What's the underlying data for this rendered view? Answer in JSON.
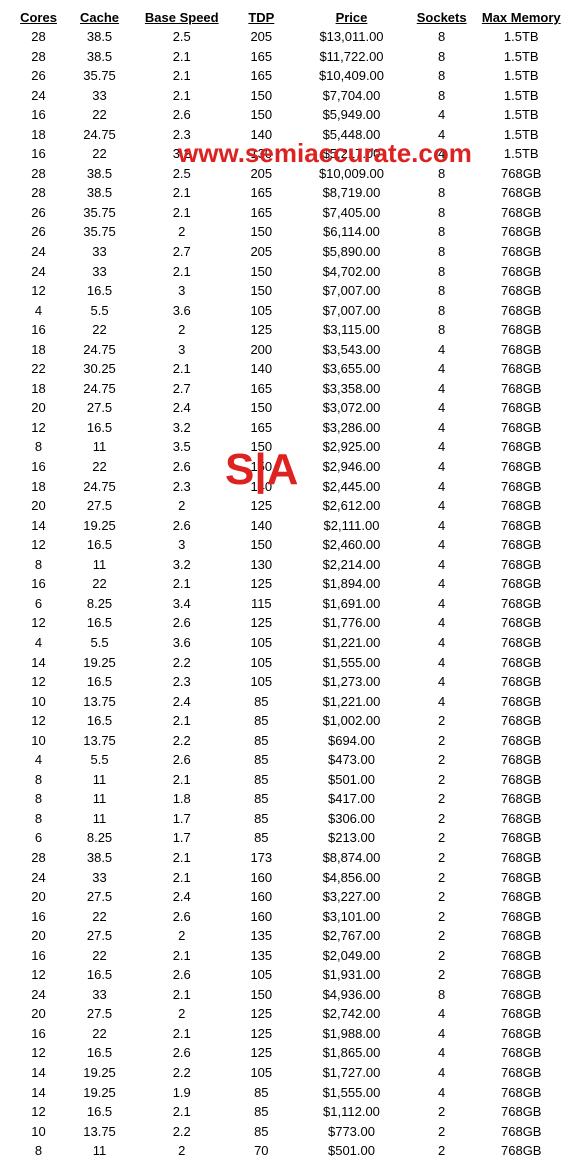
{
  "headers": {
    "cores": "Cores",
    "cache": "Cache",
    "speed": "Base Speed",
    "tdp": "TDP",
    "price": "Price",
    "sockets": "Sockets",
    "mem": "Max Memory"
  },
  "watermark1": "www.semiaccurate.com",
  "watermark2": "S|A",
  "rows": [
    {
      "cores": "28",
      "cache": "38.5",
      "speed": "2.5",
      "tdp": "205",
      "price": "$13,011.00",
      "sockets": "8",
      "mem": "1.5TB"
    },
    {
      "cores": "28",
      "cache": "38.5",
      "speed": "2.1",
      "tdp": "165",
      "price": "$11,722.00",
      "sockets": "8",
      "mem": "1.5TB"
    },
    {
      "cores": "26",
      "cache": "35.75",
      "speed": "2.1",
      "tdp": "165",
      "price": "$10,409.00",
      "sockets": "8",
      "mem": "1.5TB"
    },
    {
      "cores": "24",
      "cache": "33",
      "speed": "2.1",
      "tdp": "150",
      "price": "$7,704.00",
      "sockets": "8",
      "mem": "1.5TB"
    },
    {
      "cores": "16",
      "cache": "22",
      "speed": "2.6",
      "tdp": "150",
      "price": "$5,949.00",
      "sockets": "4",
      "mem": "1.5TB"
    },
    {
      "cores": "18",
      "cache": "24.75",
      "speed": "2.3",
      "tdp": "140",
      "price": "$5,448.00",
      "sockets": "4",
      "mem": "1.5TB"
    },
    {
      "cores": "16",
      "cache": "22",
      "speed": "3.2",
      "tdp": "130",
      "price": "$5,217.00",
      "sockets": "4",
      "mem": "1.5TB"
    },
    {
      "cores": "28",
      "cache": "38.5",
      "speed": "2.5",
      "tdp": "205",
      "price": "$10,009.00",
      "sockets": "8",
      "mem": "768GB"
    },
    {
      "cores": "28",
      "cache": "38.5",
      "speed": "2.1",
      "tdp": "165",
      "price": "$8,719.00",
      "sockets": "8",
      "mem": "768GB"
    },
    {
      "cores": "26",
      "cache": "35.75",
      "speed": "2.1",
      "tdp": "165",
      "price": "$7,405.00",
      "sockets": "8",
      "mem": "768GB"
    },
    {
      "cores": "26",
      "cache": "35.75",
      "speed": "2",
      "tdp": "150",
      "price": "$6,114.00",
      "sockets": "8",
      "mem": "768GB"
    },
    {
      "cores": "24",
      "cache": "33",
      "speed": "2.7",
      "tdp": "205",
      "price": "$5,890.00",
      "sockets": "8",
      "mem": "768GB"
    },
    {
      "cores": "24",
      "cache": "33",
      "speed": "2.1",
      "tdp": "150",
      "price": "$4,702.00",
      "sockets": "8",
      "mem": "768GB"
    },
    {
      "cores": "12",
      "cache": "16.5",
      "speed": "3",
      "tdp": "150",
      "price": "$7,007.00",
      "sockets": "8",
      "mem": "768GB"
    },
    {
      "cores": "4",
      "cache": "5.5",
      "speed": "3.6",
      "tdp": "105",
      "price": "$7,007.00",
      "sockets": "8",
      "mem": "768GB"
    },
    {
      "cores": "16",
      "cache": "22",
      "speed": "2",
      "tdp": "125",
      "price": "$3,115.00",
      "sockets": "8",
      "mem": "768GB"
    },
    {
      "cores": "18",
      "cache": "24.75",
      "speed": "3",
      "tdp": "200",
      "price": "$3,543.00",
      "sockets": "4",
      "mem": "768GB"
    },
    {
      "cores": "22",
      "cache": "30.25",
      "speed": "2.1",
      "tdp": "140",
      "price": "$3,655.00",
      "sockets": "4",
      "mem": "768GB"
    },
    {
      "cores": "18",
      "cache": "24.75",
      "speed": "2.7",
      "tdp": "165",
      "price": "$3,358.00",
      "sockets": "4",
      "mem": "768GB"
    },
    {
      "cores": "20",
      "cache": "27.5",
      "speed": "2.4",
      "tdp": "150",
      "price": "$3,072.00",
      "sockets": "4",
      "mem": "768GB"
    },
    {
      "cores": "12",
      "cache": "16.5",
      "speed": "3.2",
      "tdp": "165",
      "price": "$3,286.00",
      "sockets": "4",
      "mem": "768GB"
    },
    {
      "cores": "8",
      "cache": "11",
      "speed": "3.5",
      "tdp": "150",
      "price": "$2,925.00",
      "sockets": "4",
      "mem": "768GB"
    },
    {
      "cores": "16",
      "cache": "22",
      "speed": "2.6",
      "tdp": "150",
      "price": "$2,946.00",
      "sockets": "4",
      "mem": "768GB"
    },
    {
      "cores": "18",
      "cache": "24.75",
      "speed": "2.3",
      "tdp": "140",
      "price": "$2,445.00",
      "sockets": "4",
      "mem": "768GB"
    },
    {
      "cores": "20",
      "cache": "27.5",
      "speed": "2",
      "tdp": "125",
      "price": "$2,612.00",
      "sockets": "4",
      "mem": "768GB"
    },
    {
      "cores": "14",
      "cache": "19.25",
      "speed": "2.6",
      "tdp": "140",
      "price": "$2,111.00",
      "sockets": "4",
      "mem": "768GB"
    },
    {
      "cores": "12",
      "cache": "16.5",
      "speed": "3",
      "tdp": "150",
      "price": "$2,460.00",
      "sockets": "4",
      "mem": "768GB"
    },
    {
      "cores": "8",
      "cache": "11",
      "speed": "3.2",
      "tdp": "130",
      "price": "$2,214.00",
      "sockets": "4",
      "mem": "768GB"
    },
    {
      "cores": "16",
      "cache": "22",
      "speed": "2.1",
      "tdp": "125",
      "price": "$1,894.00",
      "sockets": "4",
      "mem": "768GB"
    },
    {
      "cores": "6",
      "cache": "8.25",
      "speed": "3.4",
      "tdp": "115",
      "price": "$1,691.00",
      "sockets": "4",
      "mem": "768GB"
    },
    {
      "cores": "12",
      "cache": "16.5",
      "speed": "2.6",
      "tdp": "125",
      "price": "$1,776.00",
      "sockets": "4",
      "mem": "768GB"
    },
    {
      "cores": "4",
      "cache": "5.5",
      "speed": "3.6",
      "tdp": "105",
      "price": "$1,221.00",
      "sockets": "4",
      "mem": "768GB"
    },
    {
      "cores": "14",
      "cache": "19.25",
      "speed": "2.2",
      "tdp": "105",
      "price": "$1,555.00",
      "sockets": "4",
      "mem": "768GB"
    },
    {
      "cores": "12",
      "cache": "16.5",
      "speed": "2.3",
      "tdp": "105",
      "price": "$1,273.00",
      "sockets": "4",
      "mem": "768GB"
    },
    {
      "cores": "10",
      "cache": "13.75",
      "speed": "2.4",
      "tdp": "85",
      "price": "$1,221.00",
      "sockets": "4",
      "mem": "768GB"
    },
    {
      "cores": "12",
      "cache": "16.5",
      "speed": "2.1",
      "tdp": "85",
      "price": "$1,002.00",
      "sockets": "2",
      "mem": "768GB"
    },
    {
      "cores": "10",
      "cache": "13.75",
      "speed": "2.2",
      "tdp": "85",
      "price": "$694.00",
      "sockets": "2",
      "mem": "768GB"
    },
    {
      "cores": "4",
      "cache": "5.5",
      "speed": "2.6",
      "tdp": "85",
      "price": "$473.00",
      "sockets": "2",
      "mem": "768GB"
    },
    {
      "cores": "8",
      "cache": "11",
      "speed": "2.1",
      "tdp": "85",
      "price": "$501.00",
      "sockets": "2",
      "mem": "768GB"
    },
    {
      "cores": "8",
      "cache": "11",
      "speed": "1.8",
      "tdp": "85",
      "price": "$417.00",
      "sockets": "2",
      "mem": "768GB"
    },
    {
      "cores": "8",
      "cache": "11",
      "speed": "1.7",
      "tdp": "85",
      "price": "$306.00",
      "sockets": "2",
      "mem": "768GB"
    },
    {
      "cores": "6",
      "cache": "8.25",
      "speed": "1.7",
      "tdp": "85",
      "price": "$213.00",
      "sockets": "2",
      "mem": "768GB"
    },
    {
      "cores": "28",
      "cache": "38.5",
      "speed": "2.1",
      "tdp": "173",
      "price": "$8,874.00",
      "sockets": "2",
      "mem": "768GB"
    },
    {
      "cores": "24",
      "cache": "33",
      "speed": "2.1",
      "tdp": "160",
      "price": "$4,856.00",
      "sockets": "2",
      "mem": "768GB"
    },
    {
      "cores": "20",
      "cache": "27.5",
      "speed": "2.4",
      "tdp": "160",
      "price": "$3,227.00",
      "sockets": "2",
      "mem": "768GB"
    },
    {
      "cores": "16",
      "cache": "22",
      "speed": "2.6",
      "tdp": "160",
      "price": "$3,101.00",
      "sockets": "2",
      "mem": "768GB"
    },
    {
      "cores": "20",
      "cache": "27.5",
      "speed": "2",
      "tdp": "135",
      "price": "$2,767.00",
      "sockets": "2",
      "mem": "768GB"
    },
    {
      "cores": "16",
      "cache": "22",
      "speed": "2.1",
      "tdp": "135",
      "price": "$2,049.00",
      "sockets": "2",
      "mem": "768GB"
    },
    {
      "cores": "12",
      "cache": "16.5",
      "speed": "2.6",
      "tdp": "105",
      "price": "$1,931.00",
      "sockets": "2",
      "mem": "768GB"
    },
    {
      "cores": "24",
      "cache": "33",
      "speed": "2.1",
      "tdp": "150",
      "price": "$4,936.00",
      "sockets": "8",
      "mem": "768GB"
    },
    {
      "cores": "20",
      "cache": "27.5",
      "speed": "2",
      "tdp": "125",
      "price": "$2,742.00",
      "sockets": "4",
      "mem": "768GB"
    },
    {
      "cores": "16",
      "cache": "22",
      "speed": "2.1",
      "tdp": "125",
      "price": "$1,988.00",
      "sockets": "4",
      "mem": "768GB"
    },
    {
      "cores": "12",
      "cache": "16.5",
      "speed": "2.6",
      "tdp": "125",
      "price": "$1,865.00",
      "sockets": "4",
      "mem": "768GB"
    },
    {
      "cores": "14",
      "cache": "19.25",
      "speed": "2.2",
      "tdp": "105",
      "price": "$1,727.00",
      "sockets": "4",
      "mem": "768GB"
    },
    {
      "cores": "14",
      "cache": "19.25",
      "speed": "1.9",
      "tdp": "85",
      "price": "$1,555.00",
      "sockets": "4",
      "mem": "768GB"
    },
    {
      "cores": "12",
      "cache": "16.5",
      "speed": "2.1",
      "tdp": "85",
      "price": "$1,112.00",
      "sockets": "2",
      "mem": "768GB"
    },
    {
      "cores": "10",
      "cache": "13.75",
      "speed": "2.2",
      "tdp": "85",
      "price": "$773.00",
      "sockets": "2",
      "mem": "768GB"
    },
    {
      "cores": "8",
      "cache": "11",
      "speed": "2",
      "tdp": "70",
      "price": "$501.00",
      "sockets": "2",
      "mem": "768GB"
    }
  ]
}
